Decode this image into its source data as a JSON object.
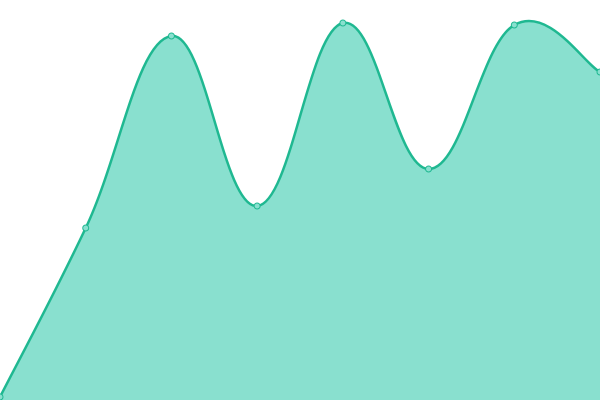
{
  "chart_data": {
    "type": "area",
    "values": [
      3,
      172,
      364,
      194,
      377,
      231,
      375,
      328
    ],
    "ylim": [
      0,
      400
    ],
    "color": "#1fb891",
    "fill": "#89e0cf"
  }
}
